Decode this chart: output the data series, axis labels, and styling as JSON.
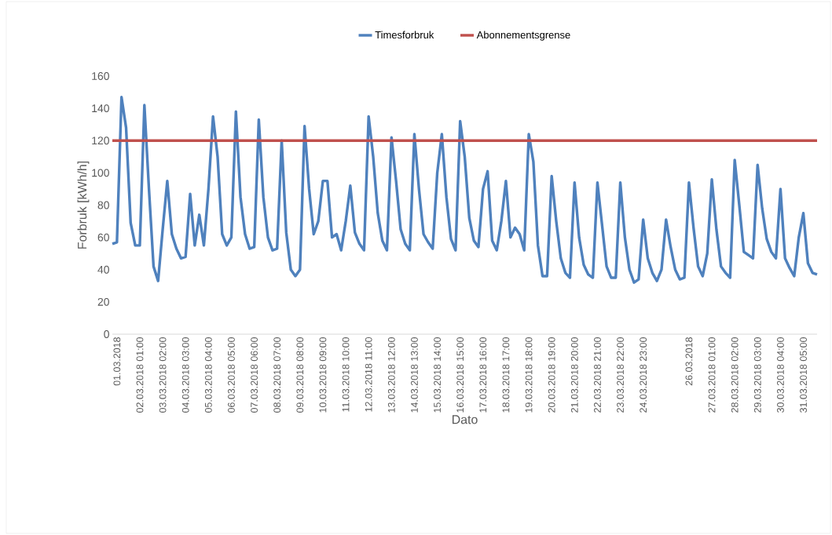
{
  "chart_data": {
    "type": "line",
    "xlabel": "Dato",
    "ylabel": "Forbruk [kWh/h]",
    "ylim": [
      0,
      160
    ],
    "yticks": [
      0,
      20,
      40,
      60,
      80,
      100,
      120,
      140,
      160
    ],
    "categories": [
      null,
      "01.03.2018",
      null,
      null,
      null,
      null,
      "02.03.2018 01:00",
      null,
      null,
      null,
      null,
      "03.03.2018 02:00",
      null,
      null,
      null,
      null,
      "04.03.2018 03:00",
      null,
      null,
      null,
      null,
      "05.03.2018 04:00",
      null,
      null,
      null,
      null,
      "06.03.2018 05:00",
      null,
      null,
      null,
      null,
      "07.03.2018 06:00",
      null,
      null,
      null,
      null,
      "08.03.2018 07:00",
      null,
      null,
      null,
      null,
      "09.03.2018 08:00",
      null,
      null,
      null,
      null,
      "10.03.2018 09:00",
      null,
      null,
      null,
      null,
      "11.03.2018 10:00",
      null,
      null,
      null,
      null,
      "12.03.2018 11:00",
      null,
      null,
      null,
      null,
      "13.03.2018 12:00",
      null,
      null,
      null,
      null,
      "14.03.2018 13:00",
      null,
      null,
      null,
      null,
      "15.03.2018 14:00",
      null,
      null,
      null,
      null,
      "16.03.2018 15:00",
      null,
      null,
      null,
      null,
      "17.03.2018 16:00",
      null,
      null,
      null,
      null,
      "18.03.2018 17:00",
      null,
      null,
      null,
      null,
      "19.03.2018 18:00",
      null,
      null,
      null,
      null,
      "20.03.2018 19:00",
      null,
      null,
      null,
      null,
      "21.03.2018 20:00",
      null,
      null,
      null,
      null,
      "22.03.2018 21:00",
      null,
      null,
      null,
      null,
      "23.03.2018 22:00",
      null,
      null,
      null,
      null,
      "24.03.2018 23:00",
      null,
      null,
      null,
      null,
      null,
      null,
      null,
      null,
      null,
      "26.03.2018",
      null,
      null,
      null,
      null,
      "27.03.2018 01:00",
      null,
      null,
      null,
      null,
      "28.03.2018 02:00",
      null,
      null,
      null,
      null,
      "29.03.2018 03:00",
      null,
      null,
      null,
      null,
      "30.03.2018 04:00",
      null,
      null,
      null,
      null,
      "31.03.2018 05:00",
      null,
      null,
      null
    ],
    "legend": "top",
    "marker": "none",
    "line_style": "solid",
    "series": [
      {
        "name": "Timesforbruk",
        "color": "#4f81bd",
        "values": [
          56,
          57,
          147,
          128,
          69,
          55,
          55,
          142,
          90,
          42,
          33,
          65,
          95,
          62,
          53,
          47,
          48,
          87,
          55,
          74,
          55,
          90,
          135,
          110,
          62,
          55,
          60,
          138,
          85,
          62,
          53,
          54,
          133,
          85,
          60,
          52,
          53,
          120,
          63,
          40,
          36,
          40,
          129,
          90,
          62,
          70,
          95,
          95,
          60,
          62,
          52,
          70,
          92,
          63,
          56,
          52,
          135,
          110,
          75,
          58,
          52,
          122,
          95,
          65,
          56,
          52,
          124,
          90,
          62,
          57,
          53,
          100,
          124,
          85,
          59,
          52,
          132,
          110,
          72,
          58,
          54,
          90,
          101,
          58,
          52,
          70,
          95,
          60,
          66,
          62,
          52,
          124,
          107,
          55,
          36,
          36,
          98,
          70,
          47,
          38,
          35,
          94,
          60,
          43,
          37,
          35,
          94,
          68,
          42,
          35,
          35,
          94,
          60,
          40,
          32,
          34,
          71,
          47,
          38,
          33,
          40,
          71,
          54,
          40,
          34,
          35,
          94,
          66,
          42,
          36,
          50,
          96,
          65,
          42,
          38,
          35,
          108,
          80,
          51,
          49,
          47,
          105,
          78,
          59,
          51,
          47,
          90,
          47,
          41,
          36,
          60,
          75,
          44,
          38,
          37
        ]
      },
      {
        "name": "Abonnementsgrense",
        "color": "#c0504d",
        "values": [
          120,
          120,
          120,
          120,
          120,
          120,
          120,
          120,
          120,
          120,
          120,
          120,
          120,
          120,
          120,
          120,
          120,
          120,
          120,
          120,
          120,
          120,
          120,
          120,
          120,
          120,
          120,
          120,
          120,
          120,
          120,
          120,
          120,
          120,
          120,
          120,
          120,
          120,
          120,
          120,
          120,
          120,
          120,
          120,
          120,
          120,
          120,
          120,
          120,
          120,
          120,
          120,
          120,
          120,
          120,
          120,
          120,
          120,
          120,
          120,
          120,
          120,
          120,
          120,
          120,
          120,
          120,
          120,
          120,
          120,
          120,
          120,
          120,
          120,
          120,
          120,
          120,
          120,
          120,
          120,
          120,
          120,
          120,
          120,
          120,
          120,
          120,
          120,
          120,
          120,
          120,
          120,
          120,
          120,
          120,
          120,
          120,
          120,
          120,
          120,
          120,
          120,
          120,
          120,
          120,
          120,
          120,
          120,
          120,
          120,
          120,
          120,
          120,
          120,
          120,
          120,
          120,
          120,
          120,
          120,
          120,
          120,
          120,
          120,
          120,
          120,
          120,
          120,
          120,
          120,
          120,
          120,
          120,
          120,
          120,
          120,
          120,
          120,
          120,
          120,
          120,
          120,
          120,
          120,
          120,
          120,
          120,
          120,
          120,
          120,
          120,
          120,
          120,
          120,
          120
        ]
      }
    ]
  }
}
